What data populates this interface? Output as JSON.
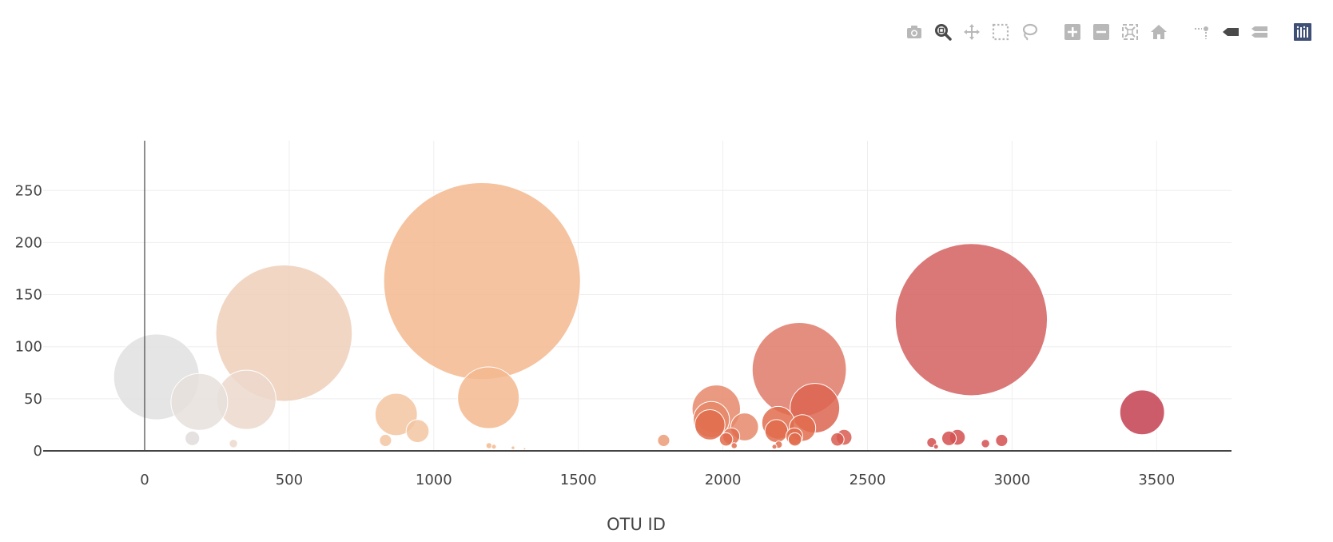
{
  "modebar": {
    "buttons": [
      {
        "name": "camera-icon",
        "title": "Download plot as a png"
      },
      {
        "name": "zoom-icon",
        "title": "Zoom",
        "active": true
      },
      {
        "name": "pan-icon",
        "title": "Pan"
      },
      {
        "name": "box-select-icon",
        "title": "Box Select"
      },
      {
        "name": "lasso-select-icon",
        "title": "Lasso Select"
      },
      {
        "name": "zoom-in-icon",
        "title": "Zoom in"
      },
      {
        "name": "zoom-out-icon",
        "title": "Zoom out"
      },
      {
        "name": "autoscale-icon",
        "title": "Autoscale"
      },
      {
        "name": "reset-axes-icon",
        "title": "Reset axes"
      },
      {
        "name": "spike-lines-icon",
        "title": "Toggle Spike Lines"
      },
      {
        "name": "hover-closest-icon",
        "title": "Show closest data on hover"
      },
      {
        "name": "hover-compare-icon",
        "title": "Compare data on hover"
      },
      {
        "name": "plotly-logo-icon",
        "title": "Produced with Plotly"
      }
    ],
    "colors": {
      "icon": "#b8b8b8",
      "active": "#4a4a4a",
      "logo": "#3f4f75"
    }
  },
  "chart_data": {
    "type": "scatter",
    "mode": "bubble",
    "xlabel": "OTU ID",
    "ylabel": "",
    "xlim": [
      -350,
      3750
    ],
    "ylim": [
      0,
      295
    ],
    "xticks": [
      0,
      500,
      1000,
      1500,
      2000,
      2500,
      3000,
      3500
    ],
    "yticks": [
      0,
      50,
      100,
      150,
      200,
      250
    ],
    "grid": true,
    "colorscale": "earth-like (grey to peach to red)",
    "points": [
      {
        "x": 41,
        "y": 71,
        "size": 71,
        "color": "#e0e0e0"
      },
      {
        "x": 189,
        "y": 47,
        "size": 47,
        "color": "#e6e0dc"
      },
      {
        "x": 352,
        "y": 49,
        "size": 49,
        "color": "#ecd8cc"
      },
      {
        "x": 482,
        "y": 113,
        "size": 113,
        "color": "#eecfba"
      },
      {
        "x": 165,
        "y": 12,
        "size": 12,
        "color": "#e0dcda"
      },
      {
        "x": 307,
        "y": 7,
        "size": 7,
        "color": "#ecd8cc"
      },
      {
        "x": 870,
        "y": 35,
        "size": 35,
        "color": "#f3c6a2"
      },
      {
        "x": 944,
        "y": 19,
        "size": 19,
        "color": "#f3c6a2"
      },
      {
        "x": 833,
        "y": 10,
        "size": 10,
        "color": "#f3c6a2"
      },
      {
        "x": 1167,
        "y": 163,
        "size": 163,
        "color": "#f3b98f"
      },
      {
        "x": 1189,
        "y": 51,
        "size": 51,
        "color": "#f3b98f"
      },
      {
        "x": 1191,
        "y": 5,
        "size": 5,
        "color": "#f3b98f"
      },
      {
        "x": 1208,
        "y": 4,
        "size": 4,
        "color": "#f3b98f"
      },
      {
        "x": 1274,
        "y": 3,
        "size": 3,
        "color": "#f3b98f"
      },
      {
        "x": 1314,
        "y": 2,
        "size": 2,
        "color": "#f3b98f"
      },
      {
        "x": 1795,
        "y": 10,
        "size": 10,
        "color": "#eb9c78"
      },
      {
        "x": 1977,
        "y": 40,
        "size": 40,
        "color": "#e6886a"
      },
      {
        "x": 1960,
        "y": 30,
        "size": 30,
        "color": "#e6886a"
      },
      {
        "x": 1955,
        "y": 25,
        "size": 25,
        "color": "#e06c4c"
      },
      {
        "x": 2011,
        "y": 11,
        "size": 11,
        "color": "#e06c4c"
      },
      {
        "x": 2029,
        "y": 14,
        "size": 14,
        "color": "#e06c4c"
      },
      {
        "x": 2075,
        "y": 23,
        "size": 23,
        "color": "#e6886a"
      },
      {
        "x": 2039,
        "y": 5,
        "size": 5,
        "color": "#e06c4c"
      },
      {
        "x": 2264,
        "y": 78,
        "size": 78,
        "color": "#df7a6a"
      },
      {
        "x": 2318,
        "y": 41,
        "size": 41,
        "color": "#dc6550"
      },
      {
        "x": 2191,
        "y": 27,
        "size": 27,
        "color": "#e06c4c"
      },
      {
        "x": 2185,
        "y": 19,
        "size": 19,
        "color": "#e06c4c"
      },
      {
        "x": 2275,
        "y": 22,
        "size": 22,
        "color": "#e06c4c"
      },
      {
        "x": 2247,
        "y": 14,
        "size": 14,
        "color": "#e06c4c"
      },
      {
        "x": 2249,
        "y": 11,
        "size": 11,
        "color": "#e06c4c"
      },
      {
        "x": 2193,
        "y": 6,
        "size": 6,
        "color": "#e06c4c"
      },
      {
        "x": 2178,
        "y": 4,
        "size": 4,
        "color": "#e06c4c"
      },
      {
        "x": 2396,
        "y": 11,
        "size": 11,
        "color": "#d85c50"
      },
      {
        "x": 2419,
        "y": 13,
        "size": 13,
        "color": "#d85c50"
      },
      {
        "x": 2859,
        "y": 126,
        "size": 126,
        "color": "#d46060"
      },
      {
        "x": 2722,
        "y": 8,
        "size": 8,
        "color": "#d45050"
      },
      {
        "x": 2737,
        "y": 4,
        "size": 4,
        "color": "#d45050"
      },
      {
        "x": 2782,
        "y": 12,
        "size": 12,
        "color": "#d45050"
      },
      {
        "x": 2811,
        "y": 13,
        "size": 13,
        "color": "#d45050"
      },
      {
        "x": 2908,
        "y": 7,
        "size": 7,
        "color": "#d45050"
      },
      {
        "x": 2964,
        "y": 10,
        "size": 10,
        "color": "#d45050"
      },
      {
        "x": 3450,
        "y": 37,
        "size": 37,
        "color": "#c44050"
      }
    ]
  }
}
